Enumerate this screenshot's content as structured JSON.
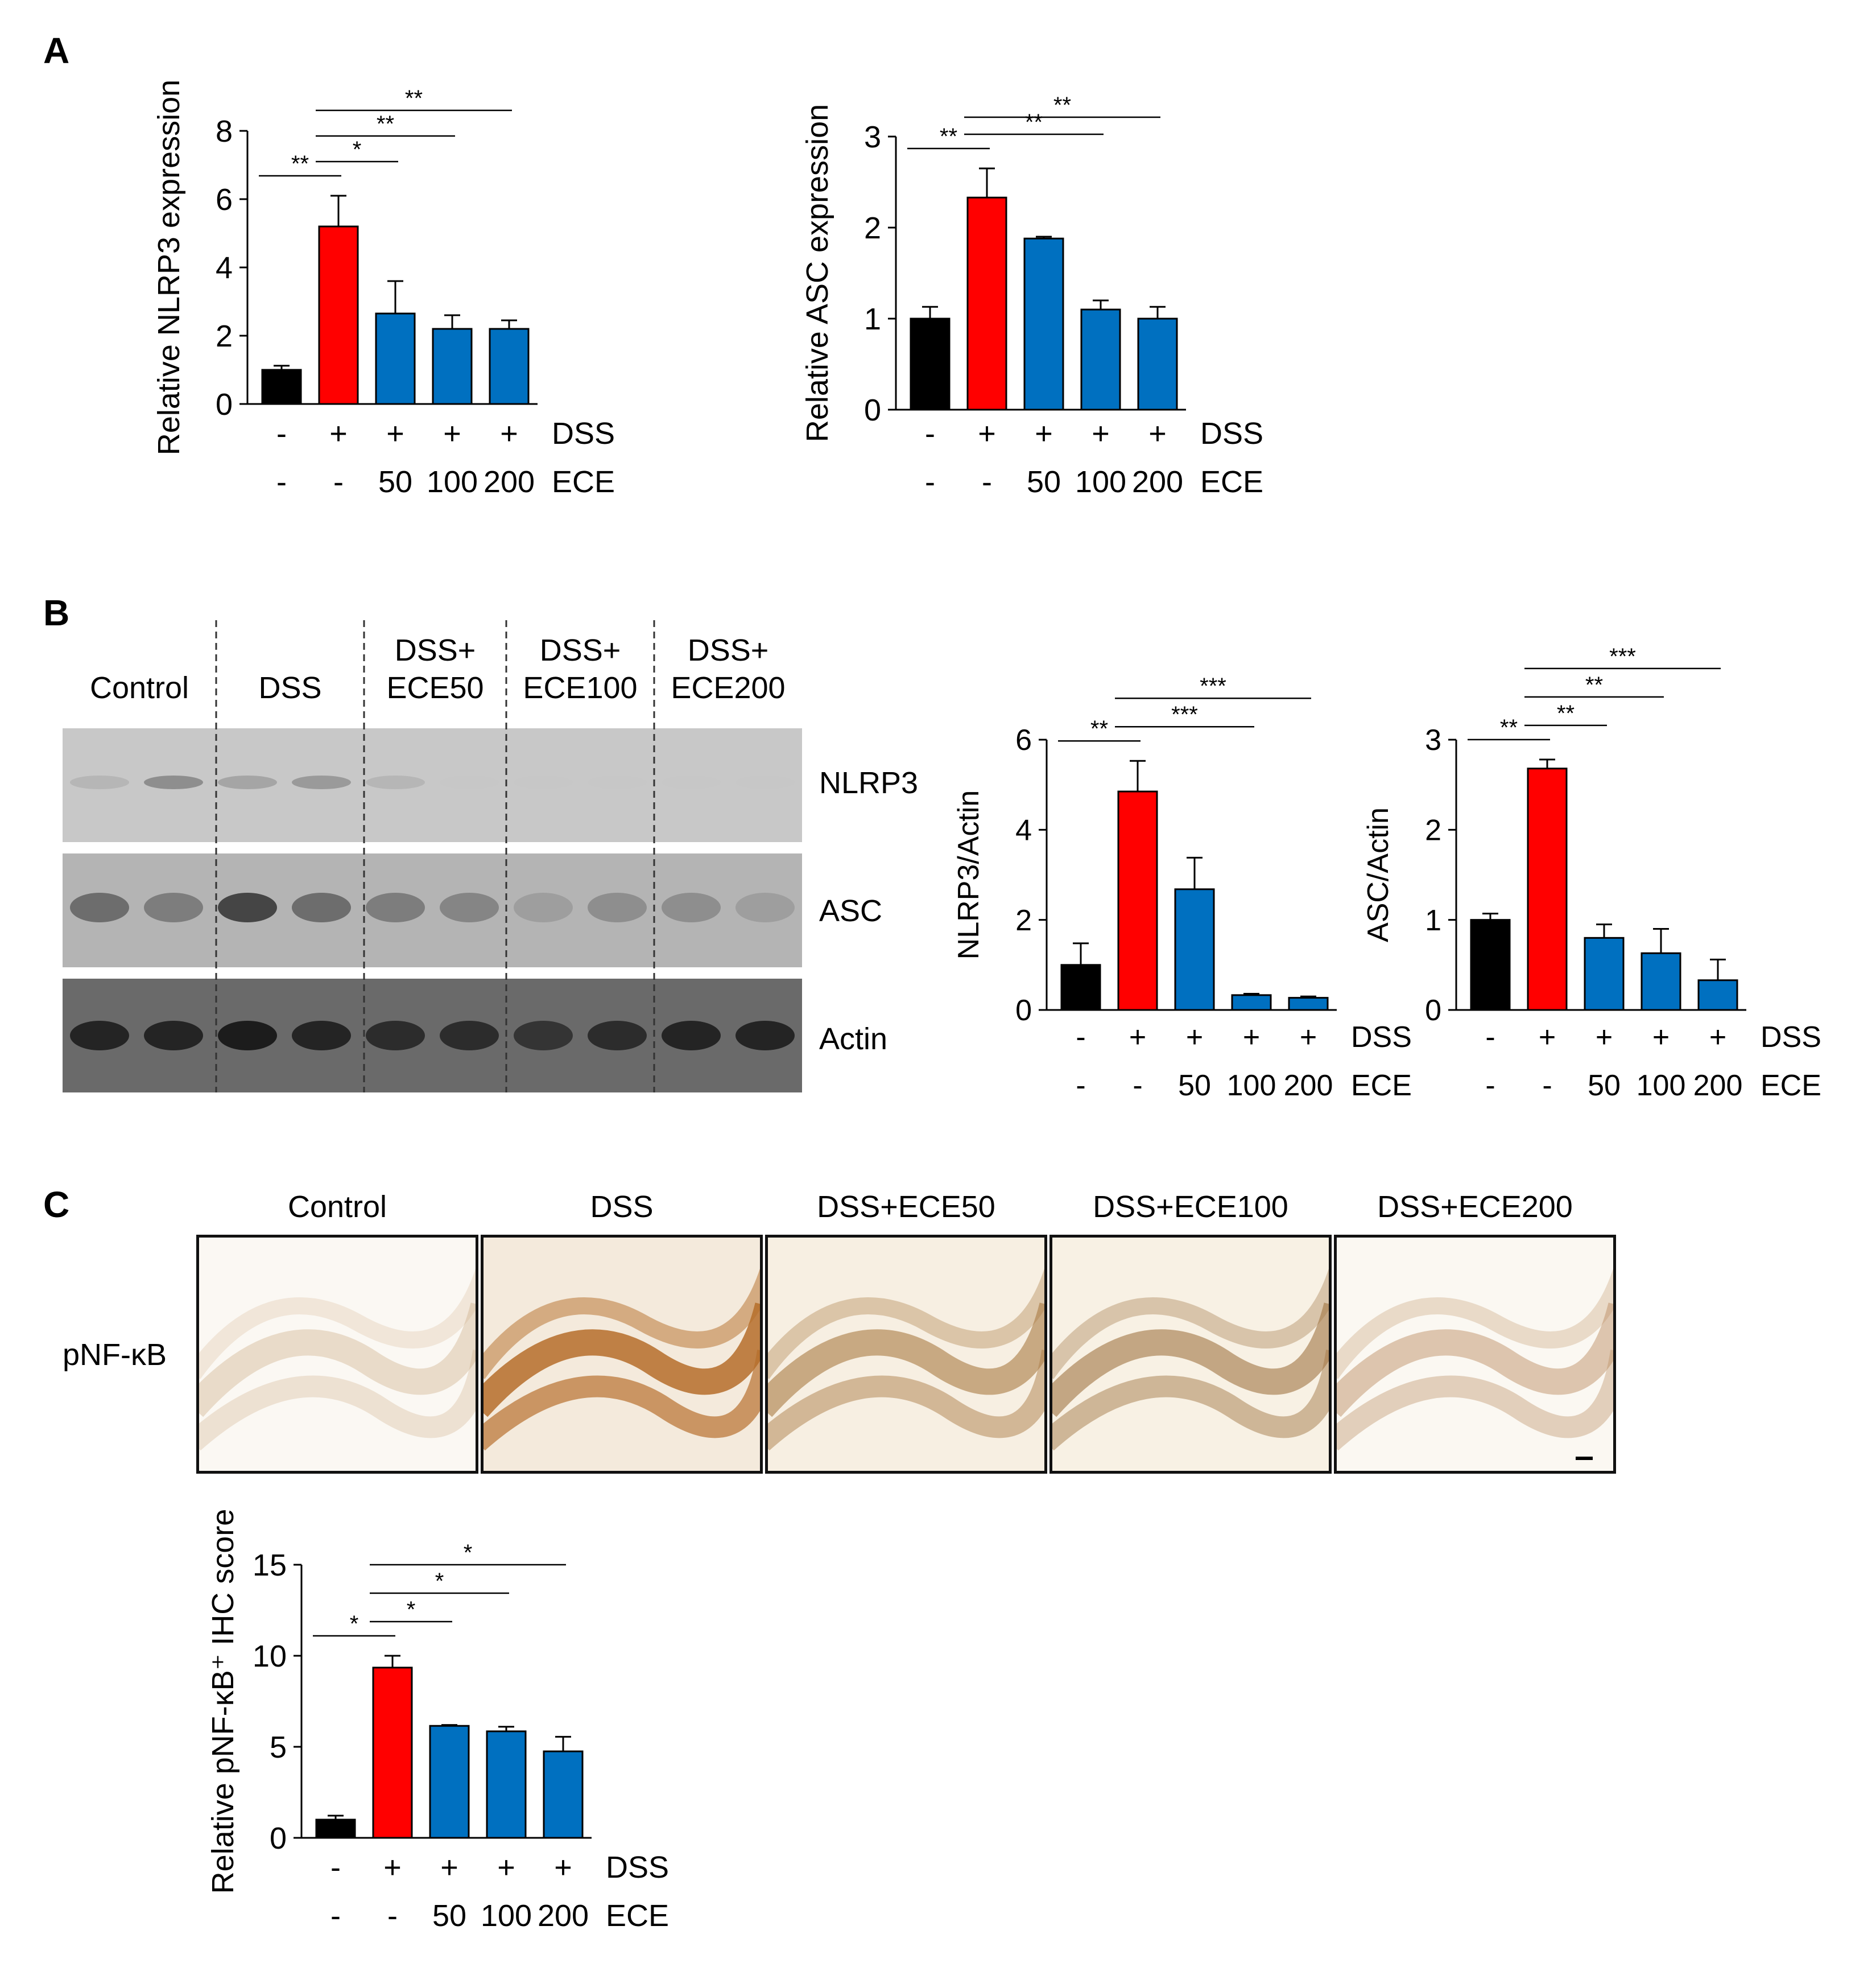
{
  "panels": {
    "A": "A",
    "B": "B",
    "C": "C"
  },
  "colors": {
    "control": "#000000",
    "dss": "#ff0000",
    "ece": "#0070c0"
  },
  "row_labels": {
    "dss": "DSS",
    "ece": "ECE"
  },
  "chart_data": [
    {
      "id": "a1",
      "type": "bar",
      "ylabel": "Relative NLRP3  expression",
      "ylim": [
        0,
        8
      ],
      "yticks": [
        0,
        2,
        4,
        6,
        8
      ],
      "values": [
        1.0,
        5.2,
        2.65,
        2.2,
        2.2
      ],
      "errors": [
        0.12,
        0.9,
        0.95,
        0.4,
        0.25
      ],
      "dss": [
        "-",
        "+",
        "+",
        "+",
        "+"
      ],
      "ece": [
        "-",
        "-",
        "50",
        "100",
        "200"
      ],
      "sig": [
        {
          "from": 0,
          "to": 1,
          "label": "**"
        },
        {
          "from": 1,
          "to": 2,
          "label": "*"
        },
        {
          "from": 1,
          "to": 3,
          "label": "**"
        },
        {
          "from": 1,
          "to": 4,
          "label": "**"
        }
      ]
    },
    {
      "id": "a2",
      "type": "bar",
      "ylabel": "Relative ASC  expression",
      "ylim": [
        0,
        3
      ],
      "yticks": [
        0,
        1,
        2,
        3
      ],
      "values": [
        1.0,
        2.33,
        1.88,
        1.1,
        1.0
      ],
      "errors": [
        0.13,
        0.32,
        0.02,
        0.1,
        0.13
      ],
      "dss": [
        "-",
        "+",
        "+",
        "+",
        "+"
      ],
      "ece": [
        "-",
        "-",
        "50",
        "100",
        "200"
      ],
      "sig": [
        {
          "from": 0,
          "to": 1,
          "label": "**"
        },
        {
          "from": 1,
          "to": 3,
          "label": "**"
        },
        {
          "from": 1,
          "to": 4,
          "label": "**"
        }
      ]
    },
    {
      "id": "b1",
      "type": "bar",
      "ylabel": "NLRP3/Actin",
      "ylim": [
        0,
        6
      ],
      "yticks": [
        0,
        2,
        4,
        6
      ],
      "values": [
        1.0,
        4.85,
        2.68,
        0.33,
        0.27
      ],
      "errors": [
        0.48,
        0.68,
        0.7,
        0.03,
        0.03
      ],
      "dss": [
        "-",
        "+",
        "+",
        "+",
        "+"
      ],
      "ece": [
        "-",
        "-",
        "50",
        "100",
        "200"
      ],
      "sig": [
        {
          "from": 0,
          "to": 1,
          "label": "**"
        },
        {
          "from": 1,
          "to": 3,
          "label": "***"
        },
        {
          "from": 1,
          "to": 4,
          "label": "***"
        }
      ]
    },
    {
      "id": "b2",
      "type": "bar",
      "ylabel": "ASC/Actin",
      "ylim": [
        0,
        3
      ],
      "yticks": [
        0,
        1,
        2,
        3
      ],
      "values": [
        1.0,
        2.68,
        0.8,
        0.63,
        0.33
      ],
      "errors": [
        0.07,
        0.1,
        0.15,
        0.27,
        0.23
      ],
      "dss": [
        "-",
        "+",
        "+",
        "+",
        "+"
      ],
      "ece": [
        "-",
        "-",
        "50",
        "100",
        "200"
      ],
      "sig": [
        {
          "from": 0,
          "to": 1,
          "label": "**"
        },
        {
          "from": 1,
          "to": 2,
          "label": "**"
        },
        {
          "from": 1,
          "to": 3,
          "label": "**"
        },
        {
          "from": 1,
          "to": 4,
          "label": "***"
        }
      ]
    },
    {
      "id": "c1",
      "type": "bar",
      "ylabel": "Relative pNF-κB⁺ IHC score",
      "ylim": [
        0,
        15
      ],
      "yticks": [
        0,
        5,
        10,
        15
      ],
      "values": [
        1.0,
        9.35,
        6.15,
        5.85,
        4.75
      ],
      "errors": [
        0.22,
        0.65,
        0.05,
        0.25,
        0.8
      ],
      "dss": [
        "-",
        "+",
        "+",
        "+",
        "+"
      ],
      "ece": [
        "-",
        "-",
        "50",
        "100",
        "200"
      ],
      "sig": [
        {
          "from": 0,
          "to": 1,
          "label": "*"
        },
        {
          "from": 1,
          "to": 2,
          "label": "*"
        },
        {
          "from": 1,
          "to": 3,
          "label": "*"
        },
        {
          "from": 1,
          "to": 4,
          "label": "*"
        }
      ]
    }
  ],
  "blot": {
    "lanes": [
      {
        "line1": "",
        "line2": "Control"
      },
      {
        "line1": "",
        "line2": "DSS"
      },
      {
        "line1": "DSS+",
        "line2": "ECE50"
      },
      {
        "line1": "DSS+",
        "line2": "ECE100"
      },
      {
        "line1": "DSS+",
        "line2": "ECE200"
      }
    ],
    "rows": [
      {
        "label": "NLRP3",
        "intensity": [
          0.25,
          0.45,
          0.35,
          0.4,
          0.25,
          0.06,
          0.03,
          0.03,
          0.02,
          0.04
        ]
      },
      {
        "label": "ASC",
        "intensity": [
          0.55,
          0.45,
          0.8,
          0.55,
          0.45,
          0.4,
          0.25,
          0.35,
          0.35,
          0.25
        ]
      },
      {
        "label": "Actin",
        "intensity": [
          0.95,
          0.95,
          1.0,
          0.95,
          0.9,
          0.9,
          0.85,
          0.9,
          0.95,
          0.95
        ]
      }
    ]
  },
  "ihc": {
    "row_label": "pNF-κB",
    "titles": [
      "Control",
      "DSS",
      "DSS+ECE50",
      "DSS+ECE100",
      "DSS+ECE200"
    ]
  }
}
